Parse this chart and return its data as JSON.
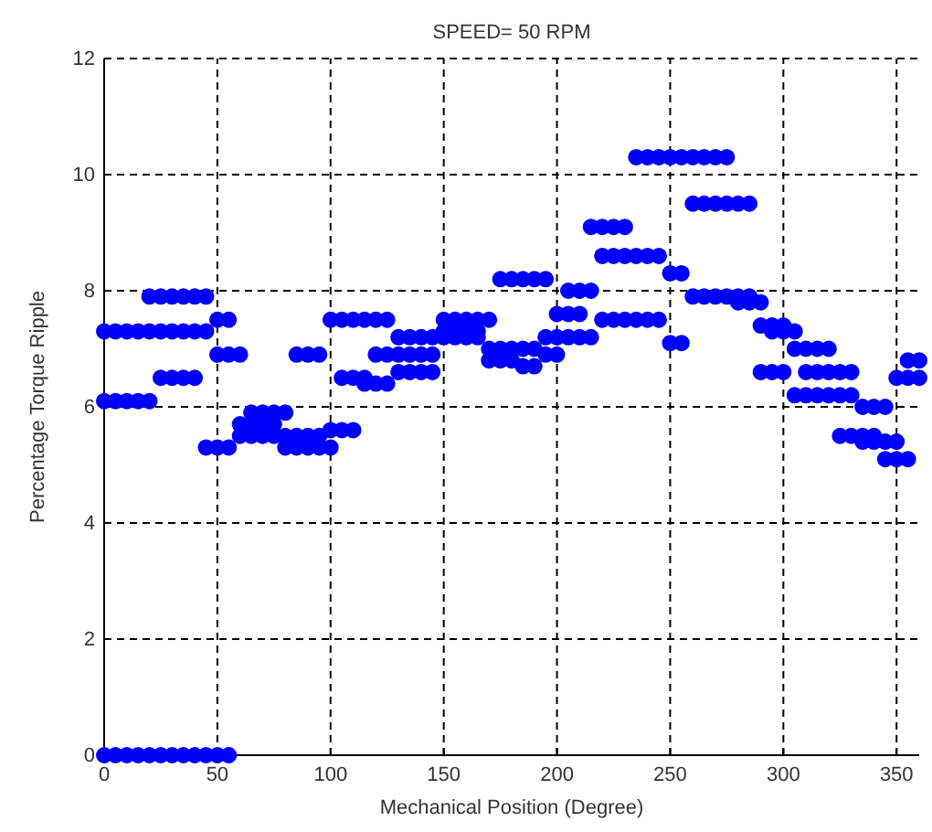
{
  "chart_data": {
    "type": "scatter",
    "title": "SPEED= 50 RPM",
    "xlabel": "Mechanical Position (Degree)",
    "ylabel": "Percentage Torque Ripple",
    "xlim": [
      0,
      360
    ],
    "xticks": [
      0,
      50,
      100,
      150,
      200,
      250,
      300,
      350
    ],
    "ylim": [
      0,
      12
    ],
    "yticks": [
      0,
      2,
      4,
      6,
      8,
      10,
      12
    ],
    "grid": true,
    "marker": "circle",
    "series": [
      {
        "color": "#0000ff",
        "x": [
          0,
          5,
          10,
          15,
          20,
          25,
          30,
          35,
          40,
          45,
          50,
          55,
          60,
          65,
          70,
          75,
          80,
          85,
          90,
          95,
          100,
          105,
          110,
          115,
          120,
          125,
          130,
          135,
          140,
          145,
          150,
          155,
          160,
          165,
          170,
          175,
          180,
          185,
          190,
          195,
          200,
          205,
          210,
          215,
          220,
          225,
          230,
          235,
          240,
          245,
          250,
          255,
          260,
          265,
          270,
          275,
          280,
          285,
          290,
          295,
          300,
          305,
          310,
          315,
          320,
          325,
          330,
          335,
          340,
          345,
          350,
          355,
          360
        ],
        "values": [
          7.3,
          7.3,
          7.3,
          7.3,
          7.3,
          7.3,
          7.3,
          7.3,
          7.3,
          7.3,
          6.9,
          6.9,
          6.9,
          5.9,
          5.9,
          5.9,
          5.9,
          6.9,
          6.9,
          6.9,
          7.5,
          7.5,
          7.5,
          7.5,
          7.5,
          7.5,
          7.2,
          7.2,
          7.2,
          7.2,
          7.5,
          7.5,
          7.5,
          7.5,
          7.5,
          8.2,
          8.2,
          8.2,
          8.2,
          8.2,
          7.6,
          7.6,
          7.6,
          9.1,
          9.1,
          9.1,
          9.1,
          10.3,
          10.3,
          10.3,
          10.3,
          10.3,
          10.3,
          10.3,
          10.3,
          10.3,
          7.8,
          7.8,
          7.8,
          7.3,
          7.3,
          7.3,
          6.6,
          6.6,
          6.6,
          6.6,
          6.6,
          6.0,
          6.0,
          6.0,
          6.5,
          6.5,
          6.5
        ]
      },
      {
        "color": "#0000ff",
        "x": [
          0,
          5,
          10,
          15,
          20,
          25,
          30,
          35,
          40,
          45,
          50,
          55,
          60,
          65,
          70,
          75,
          80,
          85,
          90,
          95,
          100,
          105,
          110,
          115,
          120,
          125,
          130,
          135,
          140,
          145,
          150,
          155,
          160,
          165,
          170,
          175,
          180,
          185,
          190,
          195,
          200,
          205,
          210,
          215,
          220,
          225,
          230,
          235,
          240,
          245,
          250,
          255,
          260,
          265,
          270,
          275,
          280,
          285,
          290,
          295,
          300,
          305,
          310,
          315,
          320,
          325,
          330,
          335,
          340,
          345,
          350,
          355
        ],
        "values": [
          6.1,
          6.1,
          6.1,
          6.1,
          6.1,
          6.5,
          6.5,
          6.5,
          6.5,
          5.3,
          5.3,
          5.3,
          5.7,
          5.7,
          5.7,
          5.7,
          5.5,
          5.5,
          5.5,
          5.5,
          5.6,
          5.6,
          5.6,
          6.4,
          6.4,
          6.4,
          6.6,
          6.6,
          6.6,
          6.6,
          7.3,
          7.3,
          7.3,
          7.3,
          7.0,
          7.0,
          7.0,
          7.0,
          7.0,
          6.9,
          6.9,
          8.0,
          8.0,
          8.0,
          8.6,
          8.6,
          8.6,
          8.6,
          8.6,
          8.6,
          8.3,
          8.3,
          9.5,
          9.5,
          9.5,
          9.5,
          9.5,
          9.5,
          7.4,
          7.4,
          7.4,
          7.0,
          7.0,
          7.0,
          7.0,
          5.5,
          5.5,
          5.5,
          5.5,
          5.1,
          5.1,
          5.1
        ]
      },
      {
        "color": "#0000ff",
        "x": [
          20,
          25,
          30,
          35,
          40,
          45,
          50,
          55,
          60,
          65,
          70,
          75,
          80,
          85,
          90,
          95,
          100,
          105,
          110,
          115,
          120,
          125,
          130,
          135,
          140,
          145,
          150,
          155,
          160,
          165,
          170,
          175,
          180,
          185,
          190,
          195,
          200,
          205,
          210,
          215,
          220,
          225,
          230,
          235,
          240,
          245,
          250,
          255,
          260,
          265,
          270,
          275,
          280,
          285,
          290,
          295,
          300,
          305,
          310,
          315,
          320,
          325,
          330,
          335,
          340,
          345,
          350,
          355,
          360
        ],
        "values": [
          7.9,
          7.9,
          7.9,
          7.9,
          7.9,
          7.9,
          7.5,
          7.5,
          5.5,
          5.5,
          5.5,
          5.5,
          5.3,
          5.3,
          5.3,
          5.3,
          5.3,
          6.5,
          6.5,
          6.5,
          6.9,
          6.9,
          6.9,
          6.9,
          6.9,
          6.9,
          7.2,
          7.2,
          7.2,
          7.2,
          6.8,
          6.8,
          6.8,
          6.7,
          6.7,
          7.2,
          7.2,
          7.2,
          7.2,
          7.2,
          7.5,
          7.5,
          7.5,
          7.5,
          7.5,
          7.5,
          7.1,
          7.1,
          7.9,
          7.9,
          7.9,
          7.9,
          7.9,
          7.9,
          6.6,
          6.6,
          6.6,
          6.2,
          6.2,
          6.2,
          6.2,
          6.2,
          6.2,
          5.4,
          5.4,
          5.4,
          5.4,
          6.8,
          6.8
        ]
      },
      {
        "color": "#0000ff",
        "x": [
          0,
          5,
          10,
          15,
          20,
          25,
          30,
          35,
          40,
          45,
          50,
          55
        ],
        "values": [
          0,
          0,
          0,
          0,
          0,
          0,
          0,
          0,
          0,
          0,
          0,
          0
        ]
      }
    ]
  }
}
